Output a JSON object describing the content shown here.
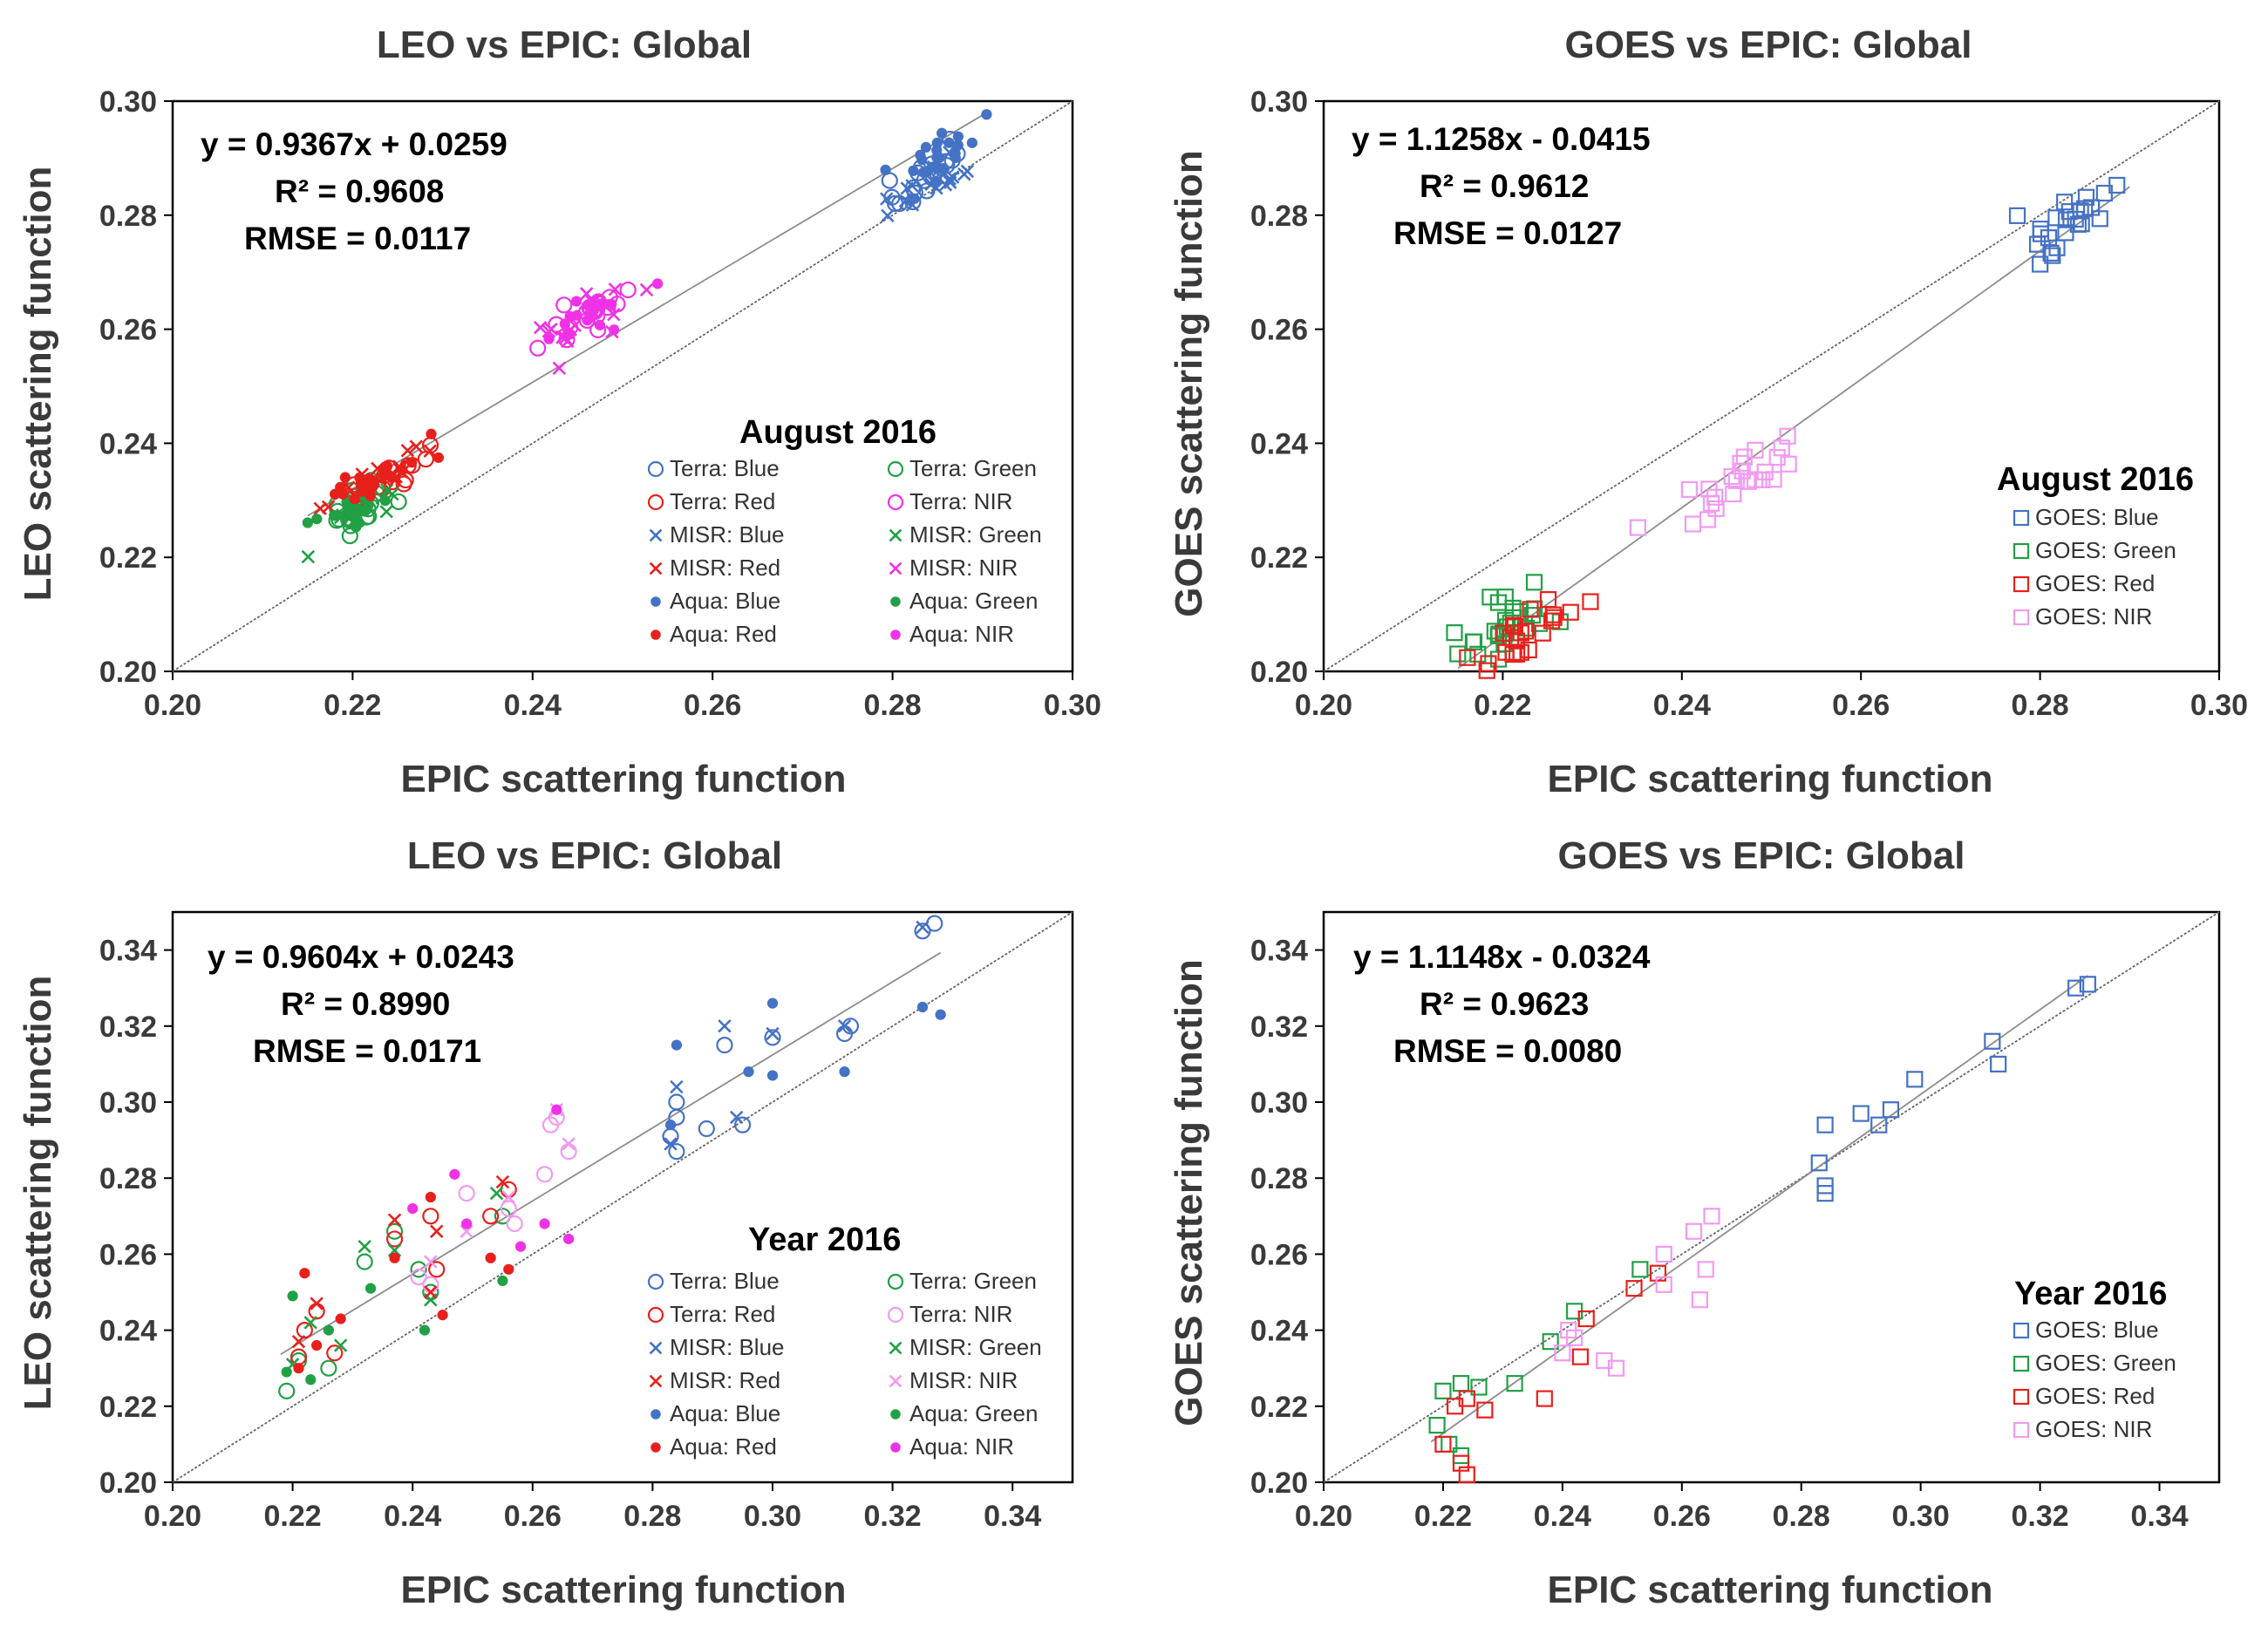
{
  "colors": {
    "blue": "#4472C4",
    "green": "#21A045",
    "red": "#E8201C",
    "nir": "#F032E6",
    "nir_light": "#F29AF2",
    "line": "#8C8C8C",
    "one_to_one": "#666666"
  },
  "chart_data": [
    {
      "id": "leo-aug",
      "type": "scatter",
      "title": "LEO vs EPIC: Global",
      "xlabel": "EPIC scattering function",
      "ylabel": "LEO scattering function",
      "xlim": [
        0.2,
        0.3
      ],
      "ylim": [
        0.2,
        0.3
      ],
      "xticks": [
        "0.20",
        "0.22",
        "0.24",
        "0.26",
        "0.28",
        "0.30"
      ],
      "yticks": [
        "0.20",
        "0.22",
        "0.24",
        "0.26",
        "0.28",
        "0.30"
      ],
      "stats": {
        "eq": "y = 0.9367x + 0.0259",
        "r2": "R² = 0.9608",
        "rmse": "RMSE = 0.0117"
      },
      "fit": {
        "slope": 0.9367,
        "intercept": 0.0259,
        "x_range": [
          0.215,
          0.29
        ]
      },
      "legend_title": "August 2016",
      "series": [
        {
          "name": "Terra: Blue",
          "color": "blue",
          "marker": "circle-open",
          "cx": 0.284,
          "cy": 0.287,
          "sx": 0.0025,
          "sy": 0.0035,
          "n": 20
        },
        {
          "name": "Terra: Green",
          "color": "green",
          "marker": "circle-open",
          "cx": 0.221,
          "cy": 0.229,
          "sx": 0.0025,
          "sy": 0.003,
          "n": 18
        },
        {
          "name": "Terra: Red",
          "color": "red",
          "marker": "circle-open",
          "cx": 0.223,
          "cy": 0.233,
          "sx": 0.003,
          "sy": 0.003,
          "n": 18
        },
        {
          "name": "Terra: NIR",
          "color": "nir",
          "marker": "circle-open",
          "cx": 0.246,
          "cy": 0.262,
          "sx": 0.003,
          "sy": 0.003,
          "n": 20
        },
        {
          "name": "MISR: Blue",
          "color": "blue",
          "marker": "x",
          "cx": 0.284,
          "cy": 0.286,
          "sx": 0.0025,
          "sy": 0.0035,
          "n": 18
        },
        {
          "name": "MISR: Green",
          "color": "green",
          "marker": "x",
          "cx": 0.221,
          "cy": 0.229,
          "sx": 0.0025,
          "sy": 0.003,
          "n": 16
        },
        {
          "name": "MISR: Red",
          "color": "red",
          "marker": "x",
          "cx": 0.223,
          "cy": 0.234,
          "sx": 0.003,
          "sy": 0.003,
          "n": 16
        },
        {
          "name": "MISR: NIR",
          "color": "nir",
          "marker": "x",
          "cx": 0.246,
          "cy": 0.262,
          "sx": 0.003,
          "sy": 0.004,
          "n": 18
        },
        {
          "name": "Aqua: Blue",
          "color": "blue",
          "marker": "dot",
          "cx": 0.284,
          "cy": 0.289,
          "sx": 0.0025,
          "sy": 0.0035,
          "n": 24
        },
        {
          "name": "Aqua: Green",
          "color": "green",
          "marker": "dot",
          "cx": 0.22,
          "cy": 0.229,
          "sx": 0.0025,
          "sy": 0.003,
          "n": 18
        },
        {
          "name": "Aqua: Red",
          "color": "red",
          "marker": "dot",
          "cx": 0.223,
          "cy": 0.234,
          "sx": 0.003,
          "sy": 0.003,
          "n": 22
        },
        {
          "name": "Aqua: NIR",
          "color": "nir",
          "marker": "dot",
          "cx": 0.246,
          "cy": 0.262,
          "sx": 0.003,
          "sy": 0.003,
          "n": 18
        }
      ]
    },
    {
      "id": "goes-aug",
      "type": "scatter",
      "title": "GOES vs EPIC: Global",
      "xlabel": "EPIC scattering function",
      "ylabel": "GOES scattering function",
      "xlim": [
        0.2,
        0.3
      ],
      "ylim": [
        0.2,
        0.3
      ],
      "xticks": [
        "0.20",
        "0.22",
        "0.24",
        "0.26",
        "0.28",
        "0.30"
      ],
      "yticks": [
        "0.20",
        "0.22",
        "0.24",
        "0.26",
        "0.28",
        "0.30"
      ],
      "stats": {
        "eq": "y = 1.1258x - 0.0415",
        "r2": "R² = 0.9612",
        "rmse": "RMSE = 0.0127"
      },
      "fit": {
        "slope": 1.1258,
        "intercept": -0.0415,
        "x_range": [
          0.215,
          0.29
        ]
      },
      "legend_title": "August 2016",
      "series": [
        {
          "name": "GOES: Blue",
          "color": "blue",
          "marker": "square-open",
          "cx": 0.283,
          "cy": 0.278,
          "sx": 0.0025,
          "sy": 0.004,
          "n": 24
        },
        {
          "name": "GOES: Green",
          "color": "green",
          "marker": "square-open",
          "cx": 0.22,
          "cy": 0.208,
          "sx": 0.0025,
          "sy": 0.004,
          "n": 26
        },
        {
          "name": "GOES: Red",
          "color": "red",
          "marker": "square-open",
          "cx": 0.222,
          "cy": 0.206,
          "sx": 0.003,
          "sy": 0.004,
          "n": 24
        },
        {
          "name": "GOES: NIR",
          "color": "nir_light",
          "marker": "square-open",
          "cx": 0.246,
          "cy": 0.233,
          "sx": 0.003,
          "sy": 0.004,
          "n": 24
        }
      ]
    },
    {
      "id": "leo-year",
      "type": "scatter",
      "title": "LEO vs EPIC: Global",
      "xlabel": "EPIC scattering function",
      "ylabel": "LEO scattering function",
      "xlim": [
        0.2,
        0.35
      ],
      "ylim": [
        0.2,
        0.35
      ],
      "xticks": [
        "0.20",
        "0.22",
        "0.24",
        "0.26",
        "0.28",
        "0.30",
        "0.32",
        "0.34"
      ],
      "yticks": [
        "0.20",
        "0.22",
        "0.24",
        "0.26",
        "0.28",
        "0.30",
        "0.32",
        "0.34"
      ],
      "stats": {
        "eq": "y = 0.9604x + 0.0243",
        "r2": "R² = 0.8990",
        "rmse": "RMSE = 0.0171"
      },
      "fit": {
        "slope": 0.9604,
        "intercept": 0.0243,
        "x_range": [
          0.218,
          0.328
        ]
      },
      "legend_title": "Year 2016",
      "series": [
        {
          "name": "Terra: Blue",
          "color": "blue",
          "marker": "circle-open",
          "points": [
            [
              0.284,
              0.3
            ],
            [
              0.284,
              0.296
            ],
            [
              0.283,
              0.291
            ],
            [
              0.284,
              0.287
            ],
            [
              0.295,
              0.294
            ],
            [
              0.292,
              0.315
            ],
            [
              0.3,
              0.317
            ],
            [
              0.312,
              0.318
            ],
            [
              0.313,
              0.32
            ],
            [
              0.325,
              0.345
            ],
            [
              0.327,
              0.347
            ],
            [
              0.289,
              0.293
            ]
          ]
        },
        {
          "name": "Terra: Green",
          "color": "green",
          "marker": "circle-open",
          "points": [
            [
              0.219,
              0.224
            ],
            [
              0.221,
              0.232
            ],
            [
              0.226,
              0.23
            ],
            [
              0.232,
              0.258
            ],
            [
              0.237,
              0.266
            ],
            [
              0.243,
              0.25
            ],
            [
              0.255,
              0.27
            ],
            [
              0.241,
              0.256
            ]
          ]
        },
        {
          "name": "Terra: Red",
          "color": "red",
          "marker": "circle-open",
          "points": [
            [
              0.222,
              0.24
            ],
            [
              0.224,
              0.245
            ],
            [
              0.227,
              0.234
            ],
            [
              0.237,
              0.264
            ],
            [
              0.243,
              0.27
            ],
            [
              0.244,
              0.256
            ],
            [
              0.253,
              0.27
            ],
            [
              0.256,
              0.277
            ],
            [
              0.221,
              0.233
            ]
          ]
        },
        {
          "name": "Terra: NIR",
          "color": "nir_light",
          "marker": "circle-open",
          "points": [
            [
              0.241,
              0.254
            ],
            [
              0.243,
              0.252
            ],
            [
              0.249,
              0.276
            ],
            [
              0.256,
              0.272
            ],
            [
              0.262,
              0.281
            ],
            [
              0.263,
              0.294
            ],
            [
              0.264,
              0.296
            ],
            [
              0.266,
              0.287
            ],
            [
              0.257,
              0.268
            ]
          ]
        },
        {
          "name": "MISR: Blue",
          "color": "blue",
          "marker": "x",
          "points": [
            [
              0.284,
              0.304
            ],
            [
              0.292,
              0.32
            ],
            [
              0.3,
              0.318
            ],
            [
              0.312,
              0.32
            ],
            [
              0.325,
              0.346
            ],
            [
              0.294,
              0.296
            ],
            [
              0.283,
              0.289
            ]
          ]
        },
        {
          "name": "MISR: Green",
          "color": "green",
          "marker": "x",
          "points": [
            [
              0.22,
              0.231
            ],
            [
              0.223,
              0.242
            ],
            [
              0.232,
              0.262
            ],
            [
              0.237,
              0.261
            ],
            [
              0.243,
              0.248
            ],
            [
              0.254,
              0.276
            ],
            [
              0.228,
              0.236
            ]
          ]
        },
        {
          "name": "MISR: Red",
          "color": "red",
          "marker": "x",
          "points": [
            [
              0.221,
              0.237
            ],
            [
              0.224,
              0.247
            ],
            [
              0.237,
              0.269
            ],
            [
              0.244,
              0.266
            ],
            [
              0.255,
              0.279
            ],
            [
              0.243,
              0.25
            ]
          ]
        },
        {
          "name": "MISR: NIR",
          "color": "nir_light",
          "marker": "x",
          "points": [
            [
              0.243,
              0.258
            ],
            [
              0.256,
              0.275
            ],
            [
              0.264,
              0.298
            ],
            [
              0.266,
              0.289
            ],
            [
              0.249,
              0.266
            ]
          ]
        },
        {
          "name": "Aqua: Blue",
          "color": "blue",
          "marker": "dot",
          "points": [
            [
              0.284,
              0.315
            ],
            [
              0.3,
              0.326
            ],
            [
              0.296,
              0.308
            ],
            [
              0.312,
              0.308
            ],
            [
              0.325,
              0.325
            ],
            [
              0.328,
              0.323
            ],
            [
              0.283,
              0.294
            ],
            [
              0.3,
              0.307
            ]
          ]
        },
        {
          "name": "Aqua: Green",
          "color": "green",
          "marker": "dot",
          "points": [
            [
              0.219,
              0.229
            ],
            [
              0.22,
              0.249
            ],
            [
              0.223,
              0.227
            ],
            [
              0.233,
              0.251
            ],
            [
              0.242,
              0.24
            ],
            [
              0.255,
              0.253
            ],
            [
              0.226,
              0.24
            ]
          ]
        },
        {
          "name": "Aqua: Red",
          "color": "red",
          "marker": "dot",
          "points": [
            [
              0.222,
              0.255
            ],
            [
              0.221,
              0.23
            ],
            [
              0.228,
              0.243
            ],
            [
              0.237,
              0.259
            ],
            [
              0.243,
              0.275
            ],
            [
              0.245,
              0.244
            ],
            [
              0.253,
              0.259
            ],
            [
              0.256,
              0.256
            ],
            [
              0.224,
              0.236
            ]
          ]
        },
        {
          "name": "Aqua: NIR",
          "color": "nir",
          "marker": "dot",
          "points": [
            [
              0.24,
              0.272
            ],
            [
              0.249,
              0.268
            ],
            [
              0.258,
              0.262
            ],
            [
              0.262,
              0.268
            ],
            [
              0.264,
              0.298
            ],
            [
              0.266,
              0.264
            ],
            [
              0.247,
              0.281
            ]
          ]
        }
      ]
    },
    {
      "id": "goes-year",
      "type": "scatter",
      "title": "GOES vs EPIC: Global",
      "xlabel": "EPIC scattering function",
      "ylabel": "GOES scattering function",
      "xlim": [
        0.2,
        0.35
      ],
      "ylim": [
        0.2,
        0.35
      ],
      "xticks": [
        "0.20",
        "0.22",
        "0.24",
        "0.26",
        "0.28",
        "0.30",
        "0.32",
        "0.34"
      ],
      "yticks": [
        "0.20",
        "0.22",
        "0.24",
        "0.26",
        "0.28",
        "0.30",
        "0.32",
        "0.34"
      ],
      "stats": {
        "eq": "y = 1.1148x - 0.0324",
        "r2": "R² = 0.9623",
        "rmse": "RMSE = 0.0080"
      },
      "fit": {
        "slope": 1.1148,
        "intercept": -0.0324,
        "x_range": [
          0.218,
          0.328
        ]
      },
      "legend_title": "Year 2016",
      "series": [
        {
          "name": "GOES: Blue",
          "color": "blue",
          "marker": "square-open",
          "points": [
            [
              0.283,
              0.284
            ],
            [
              0.284,
              0.278
            ],
            [
              0.284,
              0.294
            ],
            [
              0.29,
              0.297
            ],
            [
              0.293,
              0.294
            ],
            [
              0.295,
              0.298
            ],
            [
              0.299,
              0.306
            ],
            [
              0.312,
              0.316
            ],
            [
              0.313,
              0.31
            ],
            [
              0.326,
              0.33
            ],
            [
              0.328,
              0.331
            ],
            [
              0.284,
              0.276
            ]
          ]
        },
        {
          "name": "GOES: Green",
          "color": "green",
          "marker": "square-open",
          "points": [
            [
              0.219,
              0.215
            ],
            [
              0.22,
              0.224
            ],
            [
              0.223,
              0.226
            ],
            [
              0.226,
              0.225
            ],
            [
              0.232,
              0.226
            ],
            [
              0.238,
              0.237
            ],
            [
              0.242,
              0.245
            ],
            [
              0.253,
              0.256
            ],
            [
              0.221,
              0.21
            ],
            [
              0.223,
              0.207
            ]
          ]
        },
        {
          "name": "GOES: Red",
          "color": "red",
          "marker": "square-open",
          "points": [
            [
              0.22,
              0.21
            ],
            [
              0.222,
              0.22
            ],
            [
              0.224,
              0.222
            ],
            [
              0.227,
              0.219
            ],
            [
              0.237,
              0.222
            ],
            [
              0.243,
              0.233
            ],
            [
              0.244,
              0.243
            ],
            [
              0.252,
              0.251
            ],
            [
              0.256,
              0.255
            ],
            [
              0.224,
              0.202
            ],
            [
              0.223,
              0.205
            ]
          ]
        },
        {
          "name": "GOES: NIR",
          "color": "nir_light",
          "marker": "square-open",
          "points": [
            [
              0.24,
              0.234
            ],
            [
              0.241,
              0.24
            ],
            [
              0.242,
              0.238
            ],
            [
              0.247,
              0.232
            ],
            [
              0.249,
              0.23
            ],
            [
              0.257,
              0.252
            ],
            [
              0.257,
              0.26
            ],
            [
              0.262,
              0.266
            ],
            [
              0.263,
              0.248
            ],
            [
              0.264,
              0.256
            ],
            [
              0.265,
              0.27
            ]
          ]
        }
      ]
    }
  ]
}
